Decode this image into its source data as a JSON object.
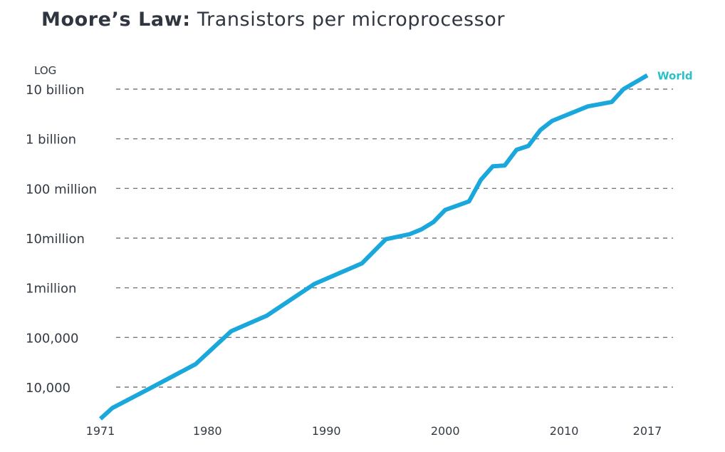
{
  "header": {
    "title_bold": "Moore’s Law:",
    "title_rest": "Transistors per microprocessor"
  },
  "colors": {
    "line": "#1aa8dc",
    "series_label": "#2bc0c9",
    "grid": "#7a7a7a",
    "text": "#333a44"
  },
  "chart_data": {
    "type": "line",
    "yscale": "log",
    "y_axis_note": "LOG",
    "y_ticks": [
      10000,
      100000,
      1000000,
      10000000,
      100000000,
      1000000000,
      10000000000
    ],
    "y_tick_labels": [
      "10,000",
      "100,000",
      "1million",
      "10million",
      "100 million",
      "1 billion",
      "10 billion"
    ],
    "x_ticks": [
      1971,
      1980,
      1990,
      2000,
      2010,
      2017
    ],
    "x_tick_labels": [
      "1971",
      "1980",
      "1990",
      "2000",
      "2010",
      "2017"
    ],
    "grid": true,
    "series": [
      {
        "name": "World",
        "x": [
          1971,
          1972,
          1975,
          1979,
          1982,
          1985,
          1989,
          1993,
          1995,
          1997,
          1998,
          1999,
          2000,
          2002,
          2003,
          2004,
          2005,
          2006,
          2007,
          2008,
          2009,
          2012,
          2014,
          2015,
          2017
        ],
        "y": [
          2300,
          3800,
          9000,
          29000,
          134000,
          275000,
          1200000,
          3100000,
          9500000,
          12000000,
          15000000,
          21000000,
          37000000,
          55000000,
          150000000,
          280000000,
          290000000,
          600000000,
          720000000,
          1500000000,
          2300000000,
          4500000000,
          5500000000,
          10000000000,
          19000000000
        ]
      }
    ]
  }
}
